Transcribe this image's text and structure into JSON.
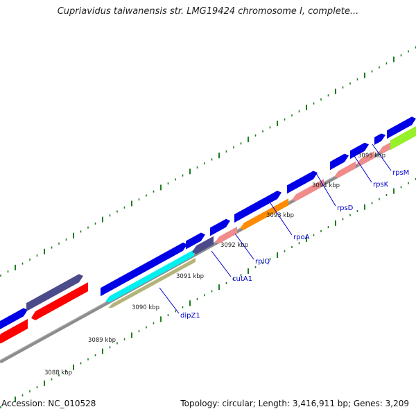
{
  "title": "Cupriavidus taiwanensis str. LMG19424 chromosome I, complete...",
  "footer": {
    "accession": "Accession: NC_010528",
    "summary": "Topology: circular; Length: 3,416,911 bp; Genes: 3,209"
  },
  "colors": {
    "background": "#ffffff",
    "backbone": "#8c8c8c",
    "tick": "#1e7d1e",
    "cds_forward": "#0000e6",
    "cds_reverse_red": "#ff0000",
    "cds_dark": "#4b4b8c",
    "cds_pink": "#f08c8c",
    "cds_orange": "#ff8c00",
    "cds_cyan": "#00f0f0",
    "cds_tan": "#b4b47a",
    "cds_green": "#96f02a",
    "label_text": "#0000cc",
    "leader": "#0000cc",
    "kbp_text": "#222222"
  },
  "kbp_labels": [
    "3088 kbp",
    "3089 kbp",
    "3090 kbp",
    "3091 kbp",
    "3092 kbp",
    "3093 kbp",
    "3094 kbp",
    "3095 kbp"
  ],
  "gene_labels": [
    "dipZ1",
    "cutA1",
    "rplQ",
    "rpoA",
    "rpsD",
    "rpsK",
    "rpsM"
  ],
  "genes": [
    {
      "name": "left-blue-top",
      "lane": "forward",
      "color": "cds_forward"
    },
    {
      "name": "left-dark",
      "lane": "forward",
      "color": "cds_dark"
    },
    {
      "name": "left-red-1",
      "lane": "reverse",
      "color": "cds_reverse_red"
    },
    {
      "name": "left-red-2",
      "lane": "reverse",
      "color": "cds_reverse_red"
    },
    {
      "name": "long-blue",
      "lane": "forward",
      "color": "cds_forward"
    },
    {
      "name": "dipZ1-cyan",
      "lane": "reverse",
      "color": "cds_cyan"
    },
    {
      "name": "dipZ1-tan",
      "lane": "reverse2",
      "color": "cds_tan"
    },
    {
      "name": "cutA1-dark",
      "lane": "reverse",
      "color": "cds_dark"
    },
    {
      "name": "small-blue-1",
      "lane": "forward",
      "color": "cds_forward"
    },
    {
      "name": "small-blue-2",
      "lane": "forward",
      "color": "cds_forward"
    },
    {
      "name": "rplQ-pink",
      "lane": "reverse",
      "color": "cds_pink"
    },
    {
      "name": "blue-3093",
      "lane": "forward",
      "color": "cds_forward"
    },
    {
      "name": "rpoA-orange",
      "lane": "reverse",
      "color": "cds_orange"
    },
    {
      "name": "blue-3094",
      "lane": "forward",
      "color": "cds_forward"
    },
    {
      "name": "rpsD-pink",
      "lane": "reverse",
      "color": "cds_pink"
    },
    {
      "name": "blue-3095a",
      "lane": "forward",
      "color": "cds_forward"
    },
    {
      "name": "blue-3095b",
      "lane": "forward",
      "color": "cds_forward"
    },
    {
      "name": "rpsK-pink-1",
      "lane": "reverse",
      "color": "cds_pink"
    },
    {
      "name": "rpsK-pink-2",
      "lane": "reverse",
      "color": "cds_pink"
    },
    {
      "name": "small-blue-3096",
      "lane": "forward",
      "color": "cds_forward"
    },
    {
      "name": "blue-3096b",
      "lane": "forward",
      "color": "cds_forward"
    },
    {
      "name": "rpsM-pink",
      "lane": "reverse",
      "color": "cds_pink"
    },
    {
      "name": "green-3096",
      "lane": "reverse",
      "color": "cds_green"
    }
  ]
}
